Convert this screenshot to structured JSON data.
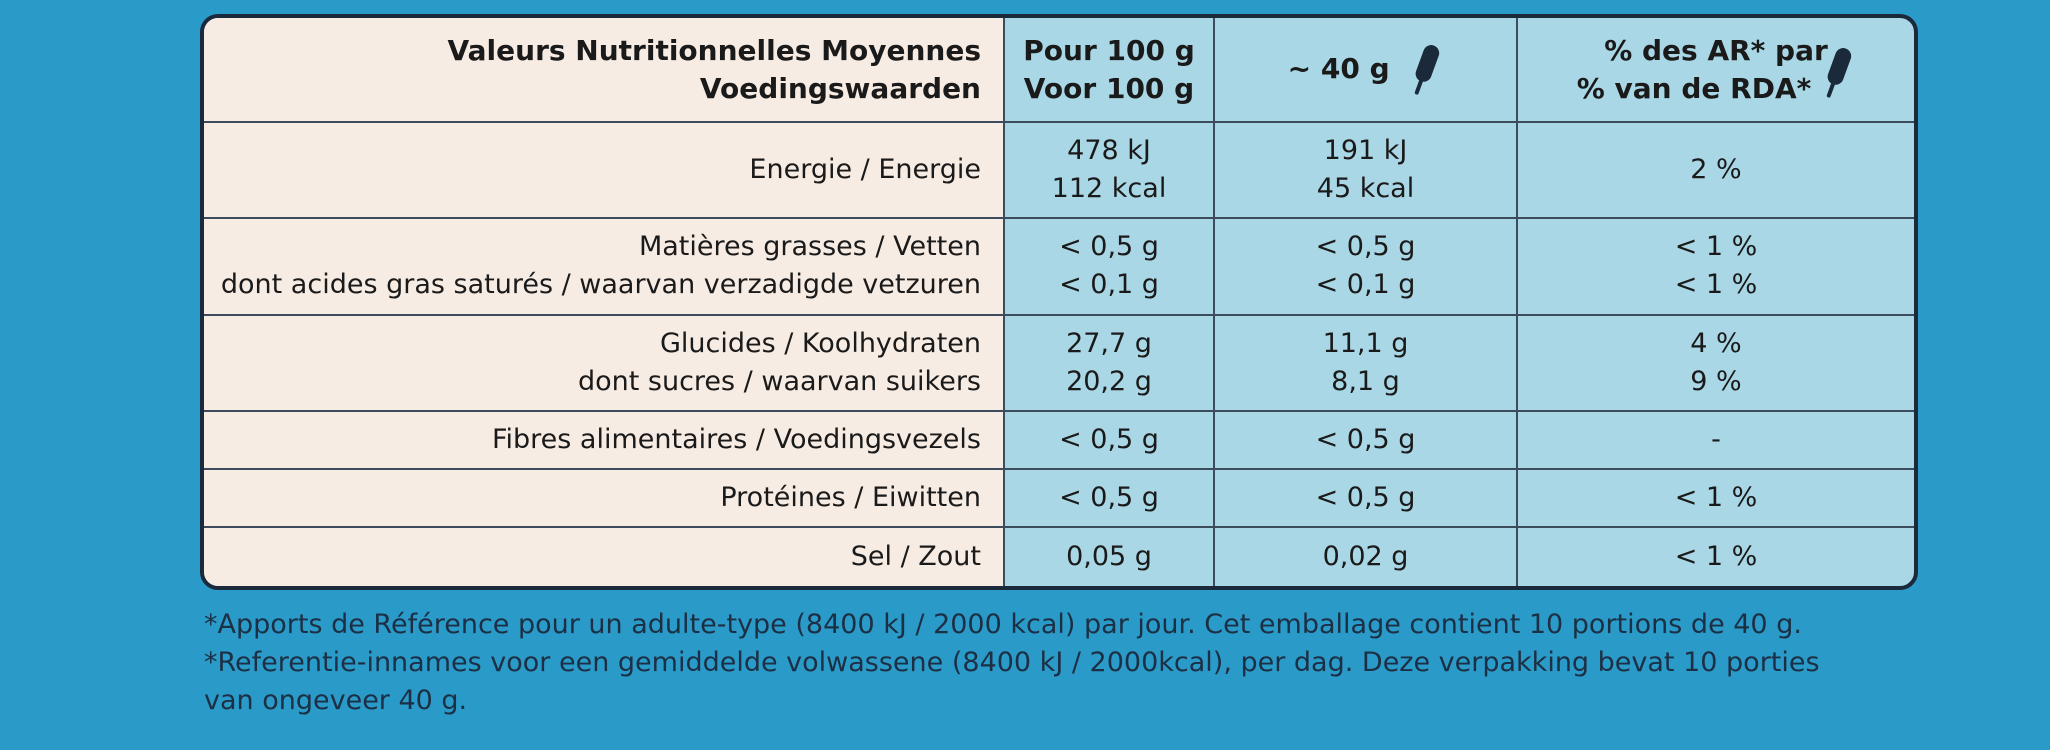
{
  "header": {
    "label_lines": [
      "Valeurs Nutritionnelles Moyennes",
      "Voedingswaarden"
    ],
    "per100_lines": [
      "Pour 100 g",
      "Voor 100 g"
    ],
    "portion": "~ 40 g",
    "ri_lines": [
      "% des AR* par",
      "% van de RDA*"
    ],
    "portion_icon": "ice-cream-bar-icon"
  },
  "rows": [
    {
      "labels": [
        "Energie / Energie"
      ],
      "per100": [
        "478 kJ",
        "112 kcal"
      ],
      "portion": [
        "191 kJ",
        "45 kcal"
      ],
      "ri": [
        "2 %"
      ]
    },
    {
      "labels": [
        "Matières grasses / Vetten",
        "dont acides gras saturés / waarvan verzadigde vetzuren"
      ],
      "per100": [
        "< 0,5 g",
        "< 0,1 g"
      ],
      "portion": [
        "< 0,5 g",
        "< 0,1 g"
      ],
      "ri": [
        "< 1 %",
        "< 1 %"
      ]
    },
    {
      "labels": [
        "Glucides / Koolhydraten",
        "dont sucres / waarvan suikers"
      ],
      "per100": [
        "27,7 g",
        "20,2 g"
      ],
      "portion": [
        "11,1 g",
        "8,1 g"
      ],
      "ri": [
        "4 %",
        "9 %"
      ]
    },
    {
      "labels": [
        "Fibres alimentaires / Voedingsvezels"
      ],
      "per100": [
        "< 0,5 g"
      ],
      "portion": [
        "< 0,5 g"
      ],
      "ri": [
        "-"
      ]
    },
    {
      "labels": [
        "Protéines / Eiwitten"
      ],
      "per100": [
        "< 0,5 g"
      ],
      "portion": [
        "< 0,5 g"
      ],
      "ri": [
        "< 1 %"
      ]
    },
    {
      "labels": [
        "Sel / Zout"
      ],
      "per100": [
        "0,05 g"
      ],
      "portion": [
        "0,02 g"
      ],
      "ri": [
        "< 1 %"
      ]
    }
  ],
  "footnotes": [
    "*Apports de Référence pour un adulte-type (8400 kJ / 2000 kcal) par jour. Cet emballage contient 10 portions de 40 g.",
    "*Referentie-innames voor een gemiddelde volwassene (8400 kJ / 2000kcal), per dag. Deze verpakking bevat 10 porties",
    "van ongeveer 40 g."
  ],
  "colors": {
    "background": "#2a9bc8",
    "label_cell": "#f7ece4",
    "value_cell": "#a9d7e6",
    "border": "#1b2a3a"
  }
}
